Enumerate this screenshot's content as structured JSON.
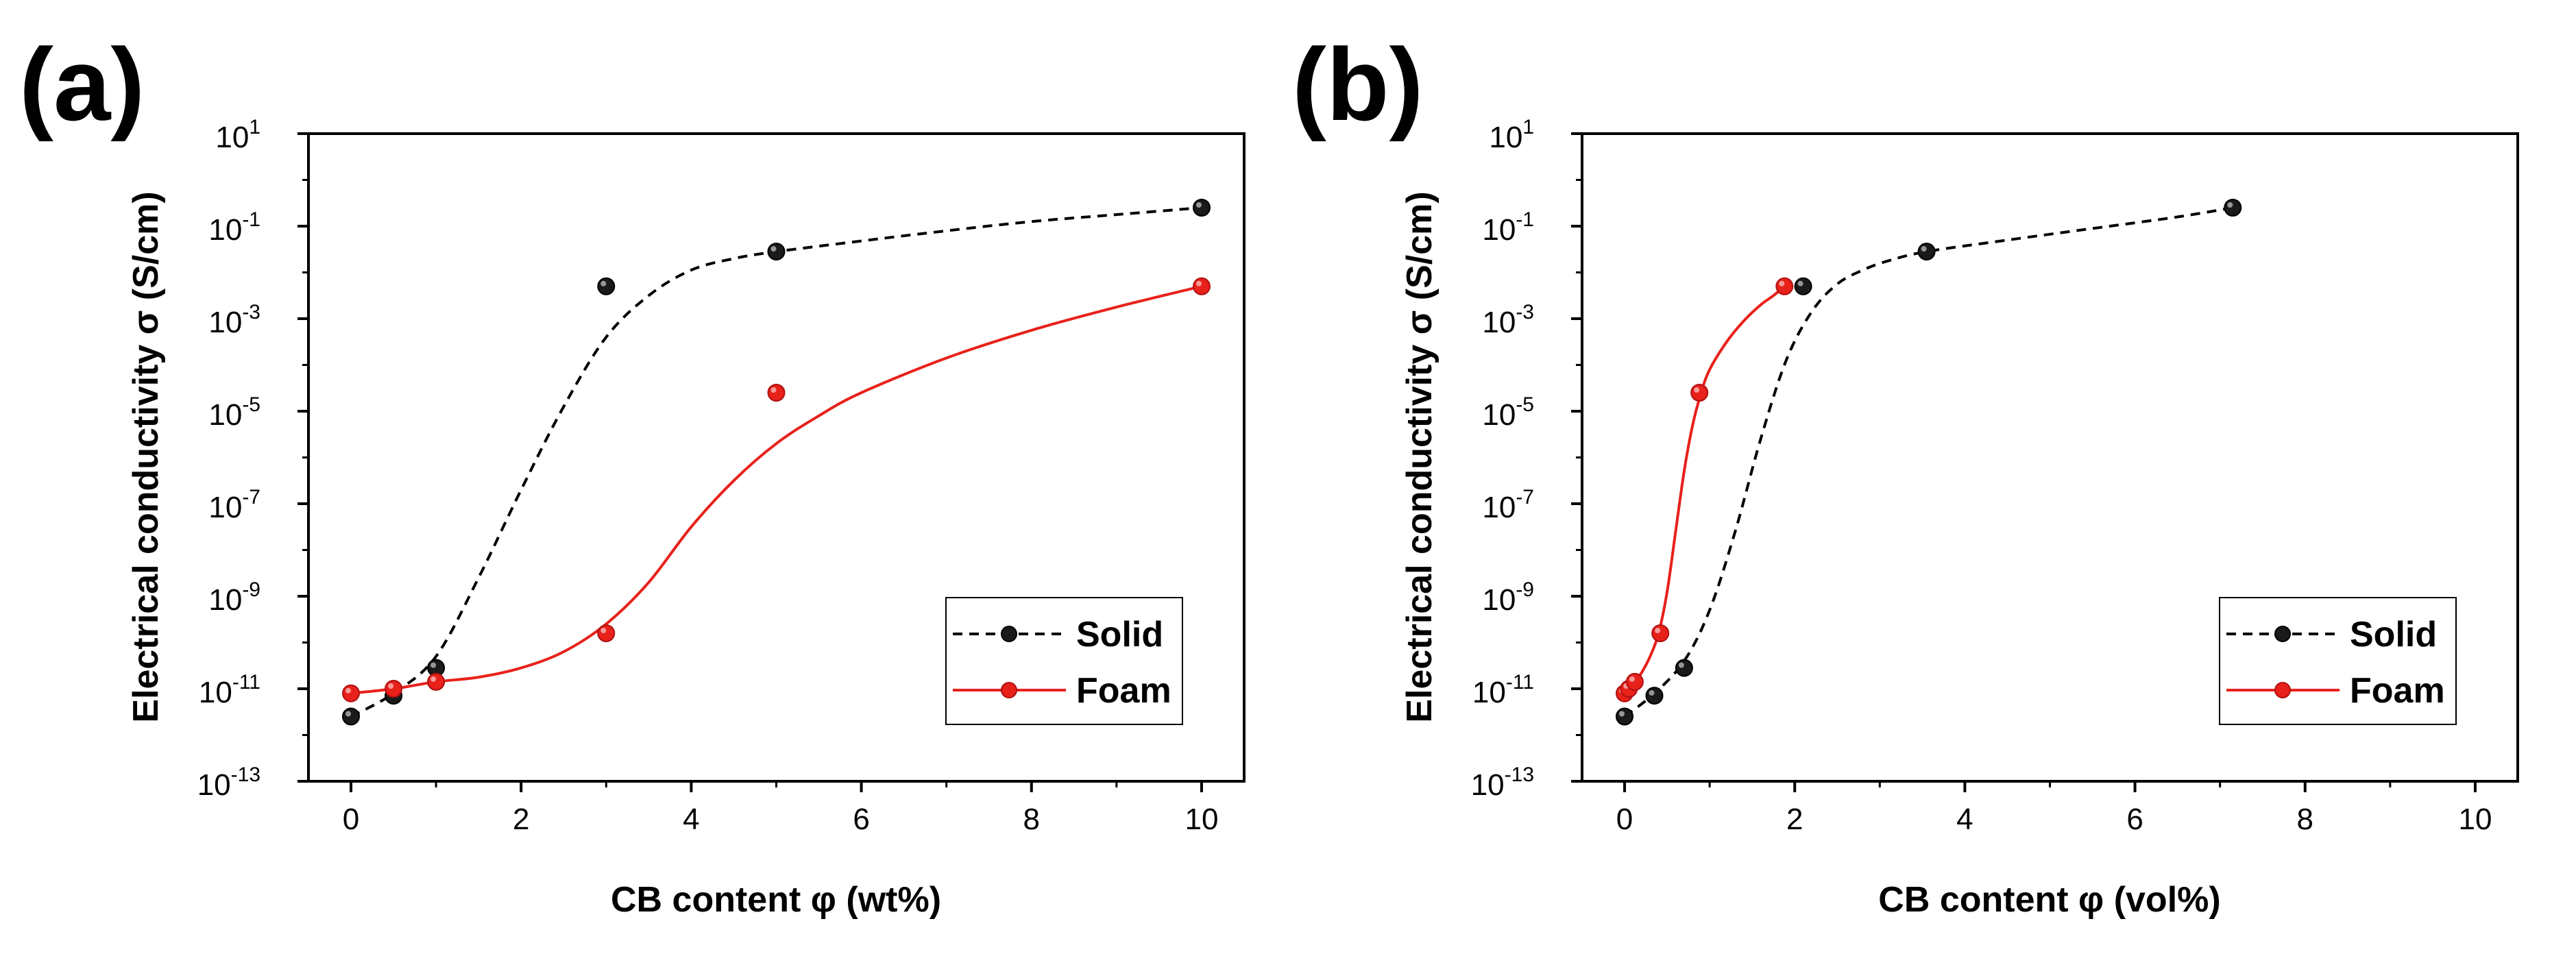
{
  "chart_data": [
    {
      "type": "scatter",
      "panel_label": "(a)",
      "xlabel": "CB content φ (wt%)",
      "ylabel": "Electrical conductivity σ (S/cm)",
      "xlim": [
        -0.5,
        10.5
      ],
      "xticks": [
        "0",
        "2",
        "4",
        "6",
        "8",
        "10"
      ],
      "xtick_values": [
        0,
        2,
        4,
        6,
        8,
        10
      ],
      "ylim_log10": [
        -13,
        1
      ],
      "yticks": [
        {
          "base": "10",
          "exp": "1"
        },
        {
          "base": "10",
          "exp": "-1"
        },
        {
          "base": "10",
          "exp": "-3"
        },
        {
          "base": "10",
          "exp": "-5"
        },
        {
          "base": "10",
          "exp": "-7"
        },
        {
          "base": "10",
          "exp": "-9"
        },
        {
          "base": "10",
          "exp": "-11"
        },
        {
          "base": "10",
          "exp": "-13"
        }
      ],
      "ytick_exponents": [
        1,
        -1,
        -3,
        -5,
        -7,
        -9,
        -11,
        -13
      ],
      "legend_position": "lower-right",
      "series": [
        {
          "name": "Solid",
          "color": "#000000",
          "line_style": "dashed",
          "x": [
            0,
            0.5,
            1,
            3,
            5,
            10
          ],
          "y_log10": [
            -11.6,
            -11.15,
            -10.55,
            -2.3,
            -1.55,
            -0.6
          ],
          "fit_x": [
            0,
            0.5,
            1,
            1.5,
            2,
            2.5,
            3,
            3.5,
            4,
            4.5,
            5,
            6,
            7,
            8,
            9,
            10
          ],
          "fit_log10": [
            -11.6,
            -11.1,
            -10.3,
            -8.6,
            -6.7,
            -4.9,
            -3.4,
            -2.5,
            -1.95,
            -1.7,
            -1.55,
            -1.32,
            -1.1,
            -0.9,
            -0.75,
            -0.6
          ]
        },
        {
          "name": "Foam",
          "color": "#e8211b",
          "line_style": "solid",
          "x": [
            0,
            0.5,
            1,
            3,
            5,
            10
          ],
          "y_log10": [
            -11.1,
            -11.0,
            -10.85,
            -9.8,
            -4.6,
            -2.3
          ],
          "fit_x": [
            0,
            0.5,
            1,
            1.5,
            2,
            2.5,
            3,
            3.5,
            4,
            4.5,
            5,
            5.5,
            6,
            7,
            8,
            9,
            10
          ],
          "fit_log10": [
            -11.1,
            -11.0,
            -10.85,
            -10.75,
            -10.55,
            -10.2,
            -9.6,
            -8.7,
            -7.5,
            -6.5,
            -5.7,
            -5.1,
            -4.6,
            -3.85,
            -3.25,
            -2.75,
            -2.3
          ]
        }
      ]
    },
    {
      "type": "scatter",
      "panel_label": "(b)",
      "xlabel": "CB content φ (vol%)",
      "ylabel": "Electrical conductivity σ (S/cm)",
      "xlim": [
        -0.5,
        10.5
      ],
      "xticks": [
        "0",
        "2",
        "4",
        "6",
        "8",
        "10"
      ],
      "xtick_values": [
        0,
        2,
        4,
        6,
        8,
        10
      ],
      "ylim_log10": [
        -13,
        1
      ],
      "yticks": [
        {
          "base": "10",
          "exp": "1"
        },
        {
          "base": "10",
          "exp": "-1"
        },
        {
          "base": "10",
          "exp": "-3"
        },
        {
          "base": "10",
          "exp": "-5"
        },
        {
          "base": "10",
          "exp": "-7"
        },
        {
          "base": "10",
          "exp": "-9"
        },
        {
          "base": "10",
          "exp": "-11"
        },
        {
          "base": "10",
          "exp": "-13"
        }
      ],
      "ytick_exponents": [
        1,
        -1,
        -3,
        -5,
        -7,
        -9,
        -11,
        -13
      ],
      "legend_position": "lower-right",
      "series": [
        {
          "name": "Solid",
          "color": "#000000",
          "line_style": "dashed",
          "x": [
            0,
            0.35,
            0.7,
            2.1,
            3.55,
            7.15
          ],
          "y_log10": [
            -11.6,
            -11.15,
            -10.55,
            -2.3,
            -1.55,
            -0.6
          ],
          "fit_x": [
            0,
            0.35,
            0.7,
            1.0,
            1.3,
            1.6,
            1.9,
            2.2,
            2.5,
            2.8,
            3.1,
            3.55,
            4.5,
            5.5,
            6.5,
            7.15
          ],
          "fit_log10": [
            -11.6,
            -11.1,
            -10.4,
            -9.3,
            -7.6,
            -5.6,
            -3.9,
            -2.85,
            -2.25,
            -1.95,
            -1.75,
            -1.55,
            -1.3,
            -1.05,
            -0.8,
            -0.6
          ]
        },
        {
          "name": "Foam",
          "color": "#e8211b",
          "line_style": "solid",
          "x": [
            0,
            0.05,
            0.12,
            0.42,
            0.88,
            1.88
          ],
          "y_log10": [
            -11.1,
            -11.0,
            -10.85,
            -9.8,
            -4.6,
            -2.3
          ],
          "fit_x": [
            0,
            0.06,
            0.12,
            0.2,
            0.3,
            0.4,
            0.5,
            0.6,
            0.7,
            0.8,
            0.9,
            1.0,
            1.2,
            1.4,
            1.6,
            1.75,
            1.88
          ],
          "fit_log10": [
            -11.1,
            -11.0,
            -10.85,
            -10.65,
            -10.3,
            -9.8,
            -8.9,
            -7.6,
            -6.3,
            -5.3,
            -4.6,
            -4.1,
            -3.5,
            -3.05,
            -2.7,
            -2.5,
            -2.3
          ]
        }
      ]
    }
  ]
}
